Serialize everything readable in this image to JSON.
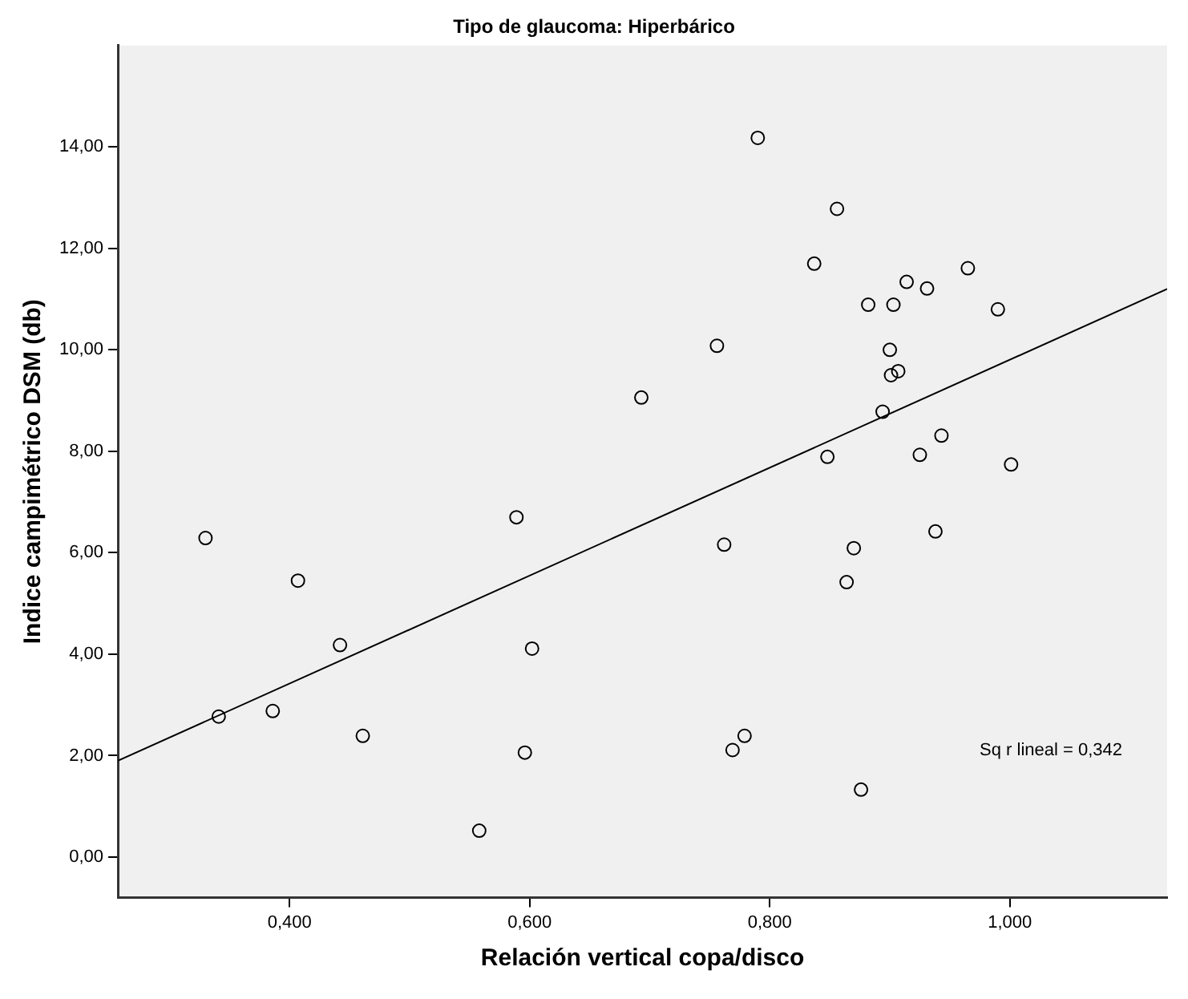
{
  "chart_data": {
    "type": "scatter",
    "title": "Tipo de glaucoma: Hiperbárico",
    "xlabel": "Relación vertical copa/disco",
    "ylabel": "Indice campimétrico DSM (db)",
    "annotations": [
      "Sq r lineal = 0,342"
    ],
    "xlim": [
      0.257,
      1.131
    ],
    "ylim": [
      -0.8,
      16
    ],
    "xticks": [
      {
        "value": 0.4,
        "label": "0,400"
      },
      {
        "value": 0.6,
        "label": "0,600"
      },
      {
        "value": 0.8,
        "label": "0,800"
      },
      {
        "value": 1.0,
        "label": "1,000"
      }
    ],
    "yticks": [
      {
        "value": 0,
        "label": "0,00"
      },
      {
        "value": 2,
        "label": "2,00"
      },
      {
        "value": 4,
        "label": "4,00"
      },
      {
        "value": 6,
        "label": "6,00"
      },
      {
        "value": 8,
        "label": "8,00"
      },
      {
        "value": 10,
        "label": "10,00"
      },
      {
        "value": 12,
        "label": "12,00"
      },
      {
        "value": 14,
        "label": "14,00"
      }
    ],
    "grid": false,
    "legend": false,
    "marker": "circle",
    "series": [
      {
        "color": "#000000",
        "x": [
          0.33,
          0.341,
          0.386,
          0.407,
          0.442,
          0.461,
          0.558,
          0.589,
          0.596,
          0.602,
          0.693,
          0.756,
          0.762,
          0.769,
          0.779,
          0.79,
          0.837,
          0.848,
          0.856,
          0.864,
          0.87,
          0.876,
          0.882,
          0.894,
          0.9,
          0.901,
          0.903,
          0.907,
          0.914,
          0.925,
          0.931,
          0.938,
          0.943,
          0.965,
          0.99,
          1.001
        ],
        "values": [
          6.29,
          2.77,
          2.88,
          5.45,
          4.18,
          2.39,
          0.52,
          6.7,
          2.06,
          4.11,
          9.06,
          10.08,
          6.16,
          2.11,
          2.39,
          14.18,
          11.7,
          7.89,
          12.78,
          5.42,
          6.09,
          1.33,
          10.89,
          8.78,
          10.0,
          9.5,
          10.89,
          9.58,
          11.34,
          7.93,
          11.21,
          6.42,
          8.31,
          11.61,
          10.8,
          7.74
        ]
      },
      {
        "type": "line",
        "color": "#000000",
        "x": [
          0.257,
          1.131
        ],
        "values": [
          1.9,
          11.2
        ],
        "marker": "none",
        "line_style": "solid"
      }
    ]
  }
}
